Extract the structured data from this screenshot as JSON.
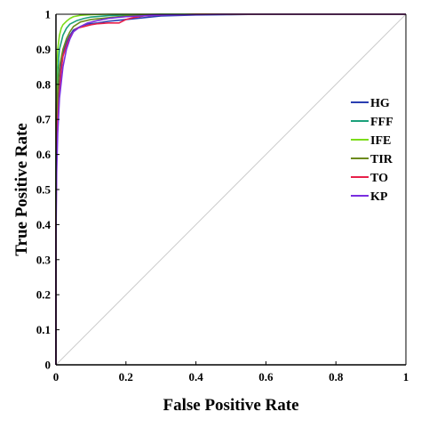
{
  "chart_data": {
    "type": "line",
    "title": "",
    "xlabel": "False Positive Rate",
    "ylabel": "True Positive Rate",
    "xlim": [
      0,
      1
    ],
    "ylim": [
      0,
      1
    ],
    "x_ticks": [
      "0",
      "0.2",
      "0.4",
      "0.6",
      "0.8",
      "1"
    ],
    "y_ticks": [
      "0",
      "0.1",
      "0.2",
      "0.3",
      "0.4",
      "0.5",
      "0.6",
      "0.7",
      "0.8",
      "0.9",
      "1"
    ],
    "grid": false,
    "legend_position": "right",
    "diagonal": {
      "x": [
        0,
        1
      ],
      "y": [
        0,
        1
      ],
      "color": "#cccccc"
    },
    "series": [
      {
        "name": "HG",
        "color": "#2a3eb1",
        "x": [
          0,
          0,
          0.002,
          0.005,
          0.01,
          0.015,
          0.02,
          0.03,
          0.04,
          0.05,
          0.07,
          0.09,
          0.12,
          0.15,
          0.2,
          0.25,
          0.3,
          0.4,
          0.5,
          0.6,
          0.8,
          1
        ],
        "y": [
          0,
          0.45,
          0.62,
          0.72,
          0.8,
          0.86,
          0.89,
          0.92,
          0.94,
          0.955,
          0.965,
          0.972,
          0.975,
          0.98,
          0.985,
          0.99,
          0.995,
          0.998,
          0.999,
          1,
          1,
          1
        ]
      },
      {
        "name": "FFF",
        "color": "#1aa07a",
        "x": [
          0,
          0,
          0.002,
          0.005,
          0.01,
          0.02,
          0.03,
          0.04,
          0.06,
          0.08,
          0.1,
          0.15,
          0.2,
          0.3,
          0.5,
          1
        ],
        "y": [
          0,
          0.55,
          0.75,
          0.84,
          0.9,
          0.94,
          0.96,
          0.972,
          0.982,
          0.988,
          0.992,
          0.996,
          0.998,
          1,
          1,
          1
        ]
      },
      {
        "name": "IFE",
        "color": "#7cdc1a",
        "x": [
          0,
          0,
          0.002,
          0.005,
          0.01,
          0.015,
          0.02,
          0.03,
          0.04,
          0.05,
          0.07,
          0.1,
          0.15,
          0.3,
          1
        ],
        "y": [
          0,
          0.7,
          0.85,
          0.9,
          0.94,
          0.96,
          0.97,
          0.98,
          0.988,
          0.993,
          0.997,
          0.999,
          1,
          1,
          1
        ]
      },
      {
        "name": "TIR",
        "color": "#6d8a1c",
        "x": [
          0,
          0,
          0.002,
          0.005,
          0.01,
          0.02,
          0.03,
          0.04,
          0.05,
          0.07,
          0.1,
          0.15,
          0.2,
          0.3,
          0.5,
          1
        ],
        "y": [
          0,
          0.5,
          0.68,
          0.78,
          0.85,
          0.9,
          0.93,
          0.95,
          0.965,
          0.978,
          0.985,
          0.99,
          0.995,
          0.999,
          1,
          1
        ]
      },
      {
        "name": "TO",
        "color": "#e8204a",
        "x": [
          0,
          0,
          0.002,
          0.005,
          0.01,
          0.015,
          0.02,
          0.03,
          0.04,
          0.05,
          0.06,
          0.08,
          0.1,
          0.12,
          0.15,
          0.18,
          0.2,
          0.22,
          0.25,
          0.3,
          0.4,
          0.6,
          1
        ],
        "y": [
          0,
          0.4,
          0.6,
          0.7,
          0.78,
          0.84,
          0.88,
          0.91,
          0.935,
          0.95,
          0.96,
          0.965,
          0.97,
          0.973,
          0.975,
          0.975,
          0.985,
          0.99,
          0.995,
          0.998,
          1,
          1,
          1
        ]
      },
      {
        "name": "KP",
        "color": "#7a2ee0",
        "x": [
          0,
          0,
          0.002,
          0.005,
          0.01,
          0.02,
          0.03,
          0.04,
          0.05,
          0.07,
          0.09,
          0.12,
          0.15,
          0.2,
          0.3,
          0.5,
          1
        ],
        "y": [
          0,
          0.35,
          0.55,
          0.66,
          0.76,
          0.85,
          0.9,
          0.93,
          0.95,
          0.965,
          0.975,
          0.982,
          0.988,
          0.993,
          0.998,
          1,
          1
        ]
      }
    ]
  }
}
